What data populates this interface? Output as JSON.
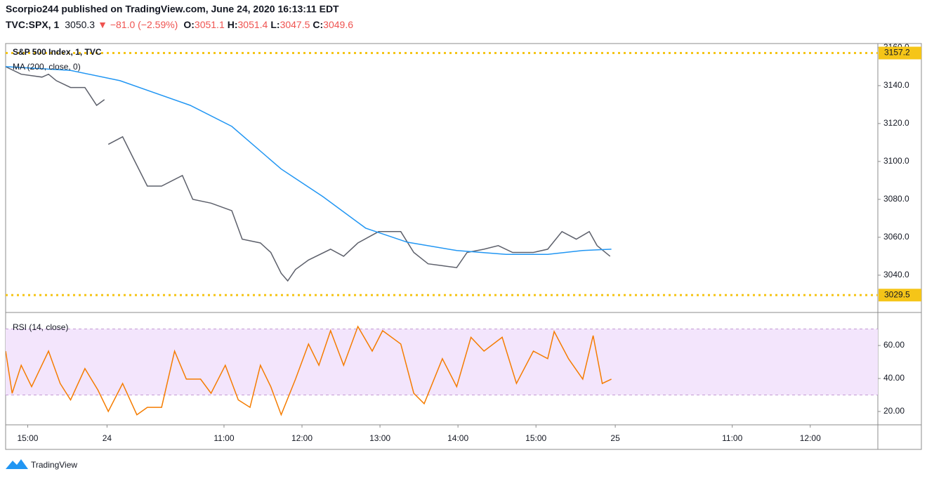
{
  "header": {
    "published": "Scorpio244 published on TradingView.com, June 24, 2020 16:13:11 EDT",
    "symbol": "TVC:SPX, 1",
    "last": "3050.3",
    "change": "▼ −81.0 (−2.59%)",
    "ohlc": [
      {
        "label": "O:",
        "value": "3051.1"
      },
      {
        "label": "H:",
        "value": "3051.4"
      },
      {
        "label": "L:",
        "value": "3047.5"
      },
      {
        "label": "C:",
        "value": "3049.6"
      }
    ]
  },
  "chart_data": [
    {
      "type": "line",
      "title": "S&P 500 Index, 1, TVC",
      "xlim": [
        0,
        671
      ],
      "ylim": [
        3020.7,
        3162.2
      ],
      "yticks": [
        {
          "value": 3040,
          "label": "3040.0"
        },
        {
          "value": 3060,
          "label": "3060.0"
        },
        {
          "value": 3080,
          "label": "3080.0"
        },
        {
          "value": 3100,
          "label": "3100.0"
        },
        {
          "value": 3120,
          "label": "3120.0"
        },
        {
          "value": 3140,
          "label": "3140.0"
        },
        {
          "value": 3160,
          "label": "3160.0"
        }
      ],
      "price_lines": [
        3157.2,
        3029.5
      ],
      "price_line_color": "#f5c518",
      "series": [
        {
          "name": "S&P 500 Index, 1, TVC",
          "color": "#5d606b",
          "x": [
            0,
            12,
            28,
            33,
            39,
            50,
            61,
            70,
            76,
            77,
            79,
            90,
            98,
            109,
            120,
            136,
            144,
            158,
            174,
            182,
            196,
            204,
            212,
            217,
            223,
            233,
            250,
            260,
            271,
            287,
            304,
            314,
            325,
            336,
            347,
            355,
            368,
            379,
            390,
            406,
            417,
            428,
            439,
            449,
            455,
            465
          ],
          "values": [
            3150,
            3146,
            3144.5,
            3146,
            3142.6,
            3139,
            3139,
            3129.6,
            3132.6,
            null,
            3109,
            3113,
            3102,
            3087,
            3087,
            3092.6,
            3080,
            3078,
            3074,
            3059,
            3057,
            3052,
            3041,
            3037,
            3043,
            3048,
            3053.7,
            3050,
            3057,
            3063,
            3063,
            3052,
            3046,
            3045,
            3044,
            3052,
            3053.7,
            3055.6,
            3052,
            3052,
            3053.7,
            3063,
            3059,
            3063,
            3055.6,
            3050
          ]
        },
        {
          "name": "MA (200, close, 0)",
          "color": "#2196f3",
          "x": [
            0,
            50,
            88,
            142,
            174,
            212,
            244,
            277,
            309,
            347,
            385,
            417,
            444,
            466
          ],
          "values": [
            3150,
            3148,
            3142.6,
            3129.6,
            3118.5,
            3096,
            3081.5,
            3064.8,
            3057.4,
            3053,
            3051,
            3051,
            3053,
            3053.7
          ]
        }
      ]
    },
    {
      "type": "line",
      "xlim": [
        0,
        671
      ],
      "ylim": [
        11.9,
        79.6
      ],
      "band": [
        30,
        70
      ],
      "band_color": "#f3e5fc",
      "yticks": [
        {
          "value": 20,
          "label": "20.00"
        },
        {
          "value": 40,
          "label": "40.00"
        },
        {
          "value": 60,
          "label": "60.00"
        }
      ],
      "xticks": [
        {
          "value": 17,
          "label": "15:00"
        },
        {
          "value": 78,
          "label": "24"
        },
        {
          "value": 168,
          "label": "11:00"
        },
        {
          "value": 228,
          "label": "12:00"
        },
        {
          "value": 288,
          "label": "13:00"
        },
        {
          "value": 348,
          "label": "14:00"
        },
        {
          "value": 408,
          "label": "15:00"
        },
        {
          "value": 469,
          "label": "25"
        },
        {
          "value": 559,
          "label": "11:00"
        },
        {
          "value": 619,
          "label": "12:00"
        }
      ],
      "series": [
        {
          "name": "RSI (14, close)",
          "color": "#f57c00",
          "x": [
            0,
            5,
            12,
            20,
            33,
            42,
            50,
            61,
            71,
            79,
            90,
            101,
            109,
            120,
            130,
            139,
            150,
            158,
            169,
            179,
            188,
            196,
            204,
            212,
            223,
            233,
            241,
            250,
            260,
            271,
            282,
            290,
            304,
            314,
            322,
            336,
            347,
            358,
            368,
            382,
            393,
            406,
            417,
            422,
            433,
            444,
            452,
            459,
            466
          ],
          "values": [
            56.6,
            31,
            48,
            35,
            56.6,
            37,
            27,
            46,
            33,
            20,
            37,
            18,
            22.5,
            22.5,
            56.6,
            39.6,
            39.6,
            31,
            48,
            27,
            22.5,
            48,
            35,
            18,
            39.6,
            60.9,
            48,
            69,
            48,
            71.5,
            56.6,
            69,
            60.9,
            31,
            24.7,
            52,
            35,
            65,
            56.6,
            65,
            37,
            56.6,
            52,
            68.5,
            52,
            39.6,
            66,
            37,
            39.6
          ]
        }
      ]
    }
  ],
  "footer": {
    "brand": "TradingView"
  }
}
